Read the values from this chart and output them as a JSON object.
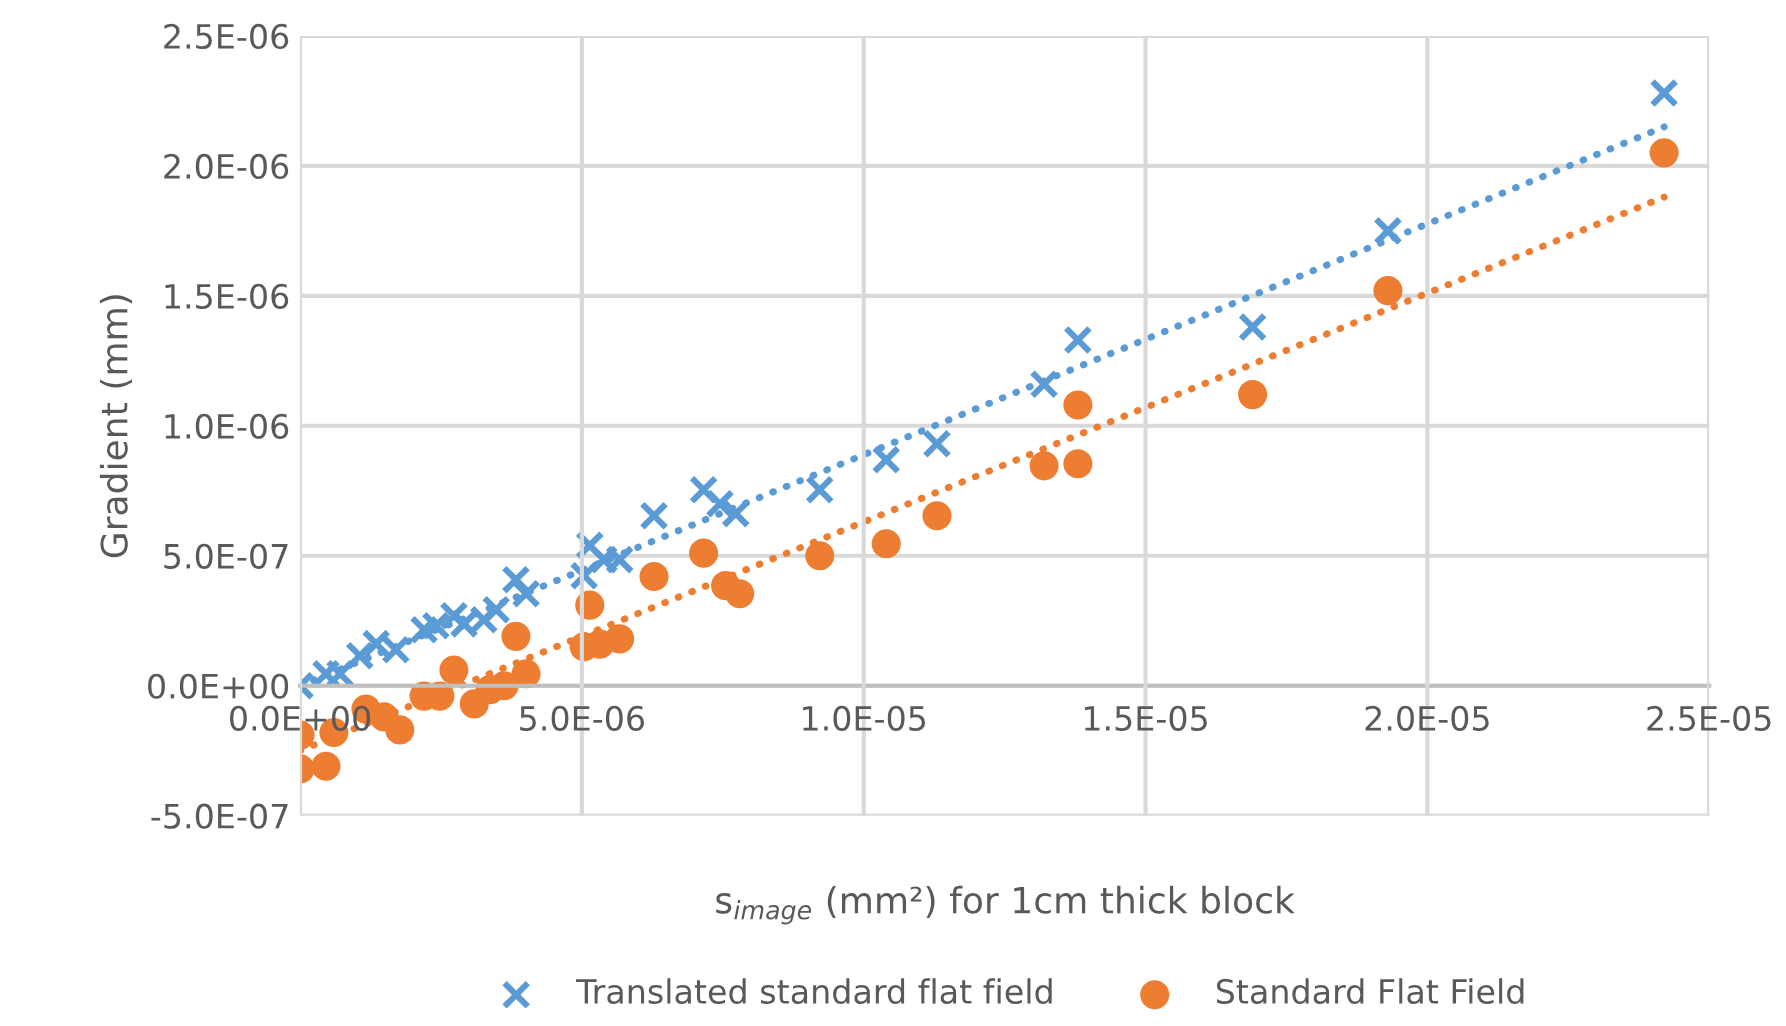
{
  "chart_data": {
    "type": "scatter",
    "xlabel": "s$_{image}$ (mm²) for 1cm thick block",
    "ylabel": "Gradient (mm)",
    "xlim": [
      0,
      2.5e-05
    ],
    "ylim": [
      -5e-07,
      2.5e-06
    ],
    "xticks": [
      {
        "value": 0,
        "label": "0.0E+00"
      },
      {
        "value": 5e-06,
        "label": "5.0E-06"
      },
      {
        "value": 1e-05,
        "label": "1.0E-05"
      },
      {
        "value": 1.5e-05,
        "label": "1.5E-05"
      },
      {
        "value": 2e-05,
        "label": "2.0E-05"
      },
      {
        "value": 2.5e-05,
        "label": "2.5E-05"
      }
    ],
    "yticks": [
      {
        "value": -5e-07,
        "label": "-5.0E-07"
      },
      {
        "value": 0,
        "label": "0.0E+00"
      },
      {
        "value": 5e-07,
        "label": "5.0E-07"
      },
      {
        "value": 1e-06,
        "label": "1.0E-06"
      },
      {
        "value": 1.5e-06,
        "label": "1.5E-06"
      },
      {
        "value": 2e-06,
        "label": "2.0E-06"
      },
      {
        "value": 2.5e-06,
        "label": "2.5E-06"
      }
    ],
    "grid": true,
    "legend": "bottom",
    "series": [
      {
        "name": "Translated standard flat field",
        "color": "#5b9bd5",
        "marker": "cross",
        "x": [
          0,
          4.6e-07,
          7.1e-07,
          1.06e-06,
          1.35e-06,
          1.7e-06,
          2.2e-06,
          2.41e-06,
          2.73e-06,
          2.91e-06,
          3.26e-06,
          3.48e-06,
          3.83e-06,
          4.01e-06,
          5.04e-06,
          5.14e-06,
          5.39e-06,
          5.67e-06,
          6.28e-06,
          7.16e-06,
          7.45e-06,
          7.73e-06,
          9.22e-06,
          1.04e-05,
          1.13e-05,
          1.32e-05,
          1.38e-05,
          1.69e-05,
          1.93e-05,
          2.42e-05
        ],
        "values": [
          0,
          4.6e-08,
          4.6e-08,
          1.15e-07,
          1.62e-07,
          1.38e-07,
          2.15e-07,
          2.31e-07,
          2.69e-07,
          2.38e-07,
          2.54e-07,
          2.92e-07,
          4.08e-07,
          3.54e-07,
          4.23e-07,
          5.4e-07,
          4.85e-07,
          4.85e-07,
          6.54e-07,
          7.54e-07,
          7e-07,
          6.62e-07,
          7.54e-07,
          8.69e-07,
          9.31e-07,
          1.16e-06,
          1.33e-06,
          1.38e-06,
          1.75e-06,
          2.28e-06
        ]
      },
      {
        "name": "Standard Flat Field",
        "color": "#ed7d31",
        "marker": "circle",
        "x": [
          0,
          0,
          4.6e-07,
          6e-07,
          1.17e-06,
          1.49e-06,
          1.77e-06,
          2.2e-06,
          2.48e-06,
          2.73e-06,
          3.09e-06,
          3.37e-06,
          3.62e-06,
          3.83e-06,
          4.01e-06,
          5.04e-06,
          5.14e-06,
          5.32e-06,
          5.67e-06,
          6.28e-06,
          7.16e-06,
          7.55e-06,
          7.8e-06,
          9.22e-06,
          1.04e-05,
          1.13e-05,
          1.32e-05,
          1.38e-05,
          1.38e-05,
          1.69e-05,
          1.93e-05,
          2.42e-05
        ],
        "values": [
          -1.9e-07,
          -3.2e-07,
          -3.1e-07,
          -1.8e-07,
          -9e-08,
          -1.2e-07,
          -1.7e-07,
          -4e-08,
          -4e-08,
          6e-08,
          -7e-08,
          -1.5e-08,
          0,
          1.9e-07,
          4.6e-08,
          1.5e-07,
          3.1e-07,
          1.6e-07,
          1.8e-07,
          4.2e-07,
          5.1e-07,
          3.85e-07,
          3.54e-07,
          5e-07,
          5.46e-07,
          6.54e-07,
          8.46e-07,
          1.08e-06,
          8.54e-07,
          1.12e-06,
          1.52e-06,
          2.05e-06
        ]
      },
      {
        "type": "line",
        "line_style": "dotted",
        "color": "#5b9bd5",
        "x": [
          0,
          2.42e-05
        ],
        "values": [
          0,
          2.15e-06
        ]
      },
      {
        "type": "line",
        "line_style": "dotted",
        "color": "#ed7d31",
        "x": [
          0,
          2.42e-05
        ],
        "values": [
          -2.5e-07,
          1.88e-06
        ]
      }
    ]
  }
}
